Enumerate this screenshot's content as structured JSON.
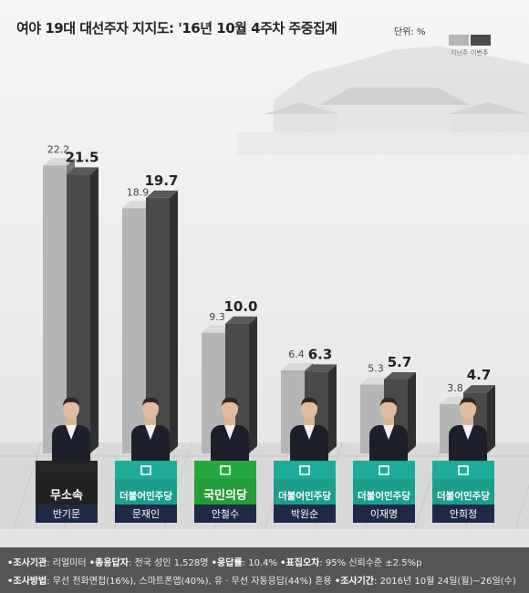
{
  "header": {
    "title": "여야 19대 대선주자 지지도: '16년 10월 4주차 주중집계",
    "unit": "단위: %"
  },
  "legend": [
    {
      "label": "지난주",
      "color": "#b5b5b5"
    },
    {
      "label": "이번주",
      "color": "#4a4a4a"
    }
  ],
  "candidates": [
    {
      "name": "반기문",
      "party": "무소속",
      "party_color": "#222222"
    },
    {
      "name": "문재인",
      "party": "더불어민주당",
      "party_color": "#1d9e8a"
    },
    {
      "name": "안철수",
      "party": "국민의당",
      "party_color": "#239c3a"
    },
    {
      "name": "박원순",
      "party": "더불어민주당",
      "party_color": "#1d9e8a"
    },
    {
      "name": "이재명",
      "party": "더불어민주당",
      "party_color": "#1d9e8a"
    },
    {
      "name": "안희정",
      "party": "더불어민주당",
      "party_color": "#1d9e8a"
    }
  ],
  "chart_data": {
    "type": "bar",
    "categories": [
      "반기문",
      "문재인",
      "안철수",
      "박원순",
      "이재명",
      "안희정"
    ],
    "series": [
      {
        "name": "지난주",
        "values": [
          22.2,
          18.9,
          9.3,
          6.4,
          5.3,
          3.8
        ],
        "labels": [
          "22.2",
          "18.9",
          "9.3",
          "6.4",
          "5.3",
          "3.8"
        ]
      },
      {
        "name": "이번주",
        "values": [
          21.5,
          19.7,
          10.0,
          6.3,
          5.7,
          4.7
        ],
        "labels": [
          "21.5",
          "19.7",
          "10.0",
          "6.3",
          "5.7",
          "4.7"
        ]
      }
    ],
    "ylim": [
      0,
      23
    ],
    "legend": "top-right",
    "grid": false
  },
  "footer": {
    "l1": [
      {
        "k": "•조사기관",
        "v": ": 리얼미터 "
      },
      {
        "k": "•총응답자",
        "v": ": 전국 성인 1,528명 "
      },
      {
        "k": "•응답률",
        "v": ": 10.4% "
      },
      {
        "k": "•표집오차",
        "v": ": 95% 신뢰수준 ±2.5%p"
      }
    ],
    "l2": [
      {
        "k": "•조사방법",
        "v": ": 무선 전화면접(16%), 스마트폰앱(40%), 유 · 무선 자동응답(44%) 혼용 "
      },
      {
        "k": "•조사기간",
        "v": ": 2016년 10월 24일(월)~26일(수)"
      }
    ]
  }
}
